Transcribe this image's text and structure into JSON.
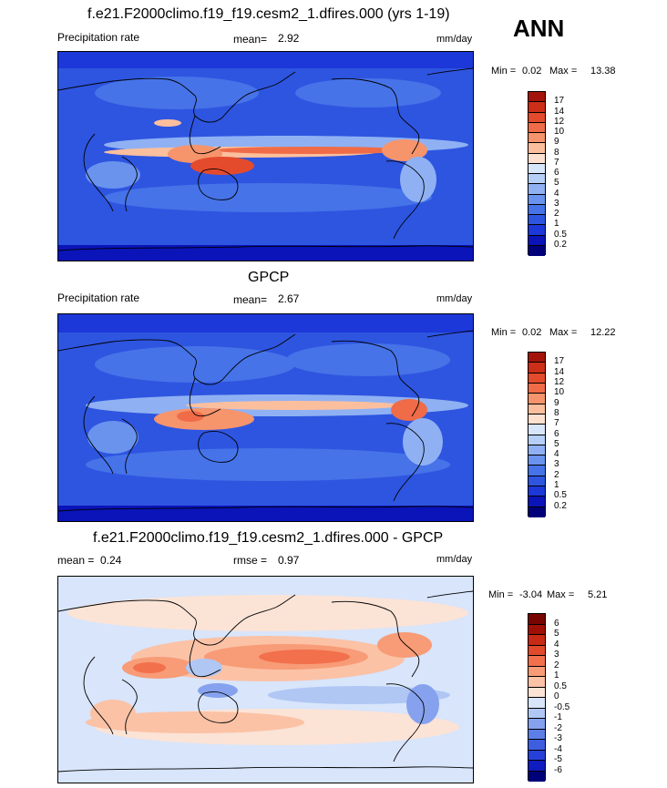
{
  "season": "ANN",
  "colors": {
    "ocean_background": "#2e55e0",
    "abs_scale": [
      "#00007a",
      "#0a14b8",
      "#1c38d8",
      "#2e55e0",
      "#4673e8",
      "#6a93ee",
      "#8fb1f3",
      "#b6cff7",
      "#d8e6fb",
      "#fde0cf",
      "#fbbf9e",
      "#f6946c",
      "#f06b47",
      "#e44a2c",
      "#cc2e18",
      "#a3130a",
      "#7a0a04"
    ],
    "diff_scale": [
      "#00007a",
      "#0f1cc0",
      "#2640d8",
      "#3e5ee0",
      "#5d7ee6",
      "#86a2ee",
      "#b0c7f4",
      "#d8e5fb",
      "#fbe3d6",
      "#fbc2a6",
      "#f89b77",
      "#f2704c",
      "#e24a2c",
      "#c82a16",
      "#a00f06",
      "#780500"
    ]
  },
  "chart_data": [
    {
      "type": "heatmap",
      "title": "f.e21.F2000climo.f19_f19.cesm2_1.dfires.000 (yrs 1-19)",
      "left_label": "Precipitation rate",
      "stat_label": "mean=",
      "stat_value": "2.92",
      "units": "mm/day",
      "min_label": "Min =",
      "min_value": "0.02",
      "max_label": "Max =",
      "max_value": "13.38",
      "colorbar_levels": [
        "17",
        "14",
        "12",
        "10",
        "9",
        "8",
        "7",
        "6",
        "5",
        "4",
        "3",
        "2",
        "1",
        "0.5",
        "0.2"
      ]
    },
    {
      "type": "heatmap",
      "title": "GPCP",
      "left_label": "Precipitation rate",
      "stat_label": "mean=",
      "stat_value": "2.67",
      "units": "mm/day",
      "min_label": "Min =",
      "min_value": "0.02",
      "max_label": "Max =",
      "max_value": "12.22",
      "colorbar_levels": [
        "17",
        "14",
        "12",
        "10",
        "9",
        "8",
        "7",
        "6",
        "5",
        "4",
        "3",
        "2",
        "1",
        "0.5",
        "0.2"
      ]
    },
    {
      "type": "heatmap",
      "title": "f.e21.F2000climo.f19_f19.cesm2_1.dfires.000 - GPCP",
      "mean_label": "mean =",
      "mean_value": "0.24",
      "rmse_label": "rmse =",
      "rmse_value": "0.97",
      "units": "mm/day",
      "min_label": "Min =",
      "min_value": "-3.04",
      "max_label": "Max =",
      "max_value": "5.21",
      "colorbar_levels": [
        "6",
        "5",
        "4",
        "3",
        "2",
        "1",
        "0.5",
        "0",
        "-0.5",
        "-1",
        "-2",
        "-3",
        "-4",
        "-5",
        "-6"
      ]
    }
  ]
}
